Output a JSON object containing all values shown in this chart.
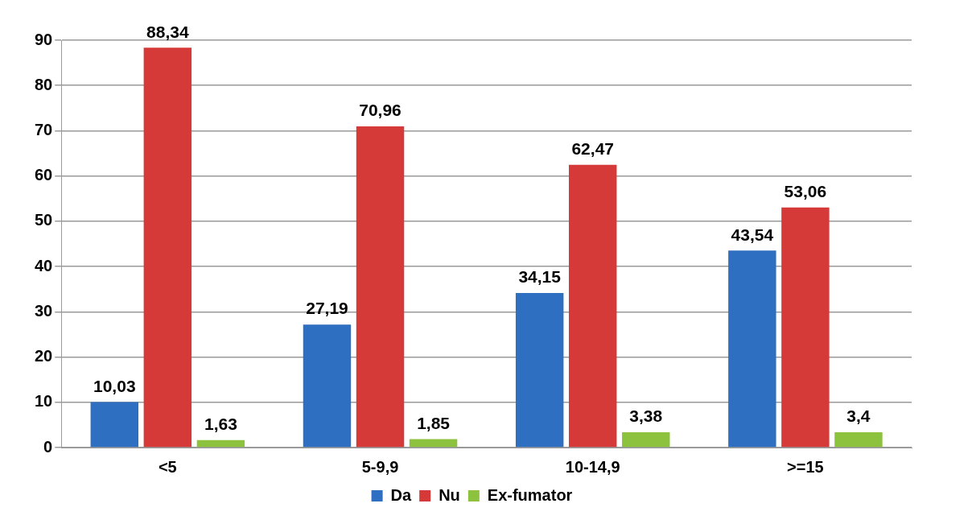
{
  "chart_data": {
    "type": "bar",
    "categories": [
      "<5",
      "5-9,9",
      "10-14,9",
      ">=15"
    ],
    "series": [
      {
        "name": "Da",
        "color": "#2f6fc1",
        "values": [
          10.03,
          27.19,
          34.15,
          43.54
        ],
        "value_labels": [
          "10,03",
          "27,19",
          "34,15",
          "43,54"
        ]
      },
      {
        "name": "Nu",
        "color": "#d63a38",
        "values": [
          88.34,
          70.96,
          62.47,
          53.06
        ],
        "value_labels": [
          "88,34",
          "70,96",
          "62,47",
          "53,06"
        ]
      },
      {
        "name": "Ex-fumator",
        "color": "#8dc23e",
        "values": [
          1.63,
          1.85,
          3.38,
          3.4
        ],
        "value_labels": [
          "1,63",
          "1,85",
          "3,38",
          "3,4"
        ]
      }
    ],
    "ylim": [
      0,
      90
    ],
    "yticks": [
      0,
      10,
      20,
      30,
      40,
      50,
      60,
      70,
      80,
      90
    ],
    "grid": "y",
    "legend": "bottom"
  }
}
